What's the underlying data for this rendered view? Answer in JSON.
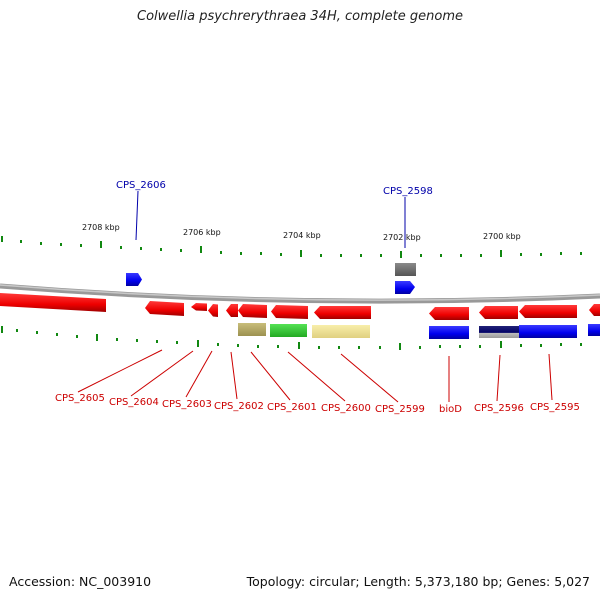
{
  "title": "Colwellia psychrerythraea 34H, complete genome",
  "footer": {
    "accession": "Accession: NC_003910",
    "summary": "Topology: circular; Length: 5,373,180 bp; Genes: 5,027"
  },
  "colors": {
    "forward_gene": "#0000ee",
    "reverse_gene": "#ee0000",
    "label_forward": "#0000aa",
    "label_reverse": "#cc0000",
    "tick": "#118811",
    "backbone": "#888888"
  },
  "coordinates": [
    "2708 kbp",
    "2706 kbp",
    "2704 kbp",
    "2702 kbp",
    "2700 kbp"
  ],
  "labels": {
    "top": [
      "CPS_2606",
      "CPS_2598"
    ],
    "bottom": [
      "CPS_2605",
      "CPS_2604",
      "CPS_2603",
      "CPS_2602",
      "CPS_2601",
      "CPS_2600",
      "CPS_2599",
      "bioD",
      "CPS_2596",
      "CPS_2595"
    ]
  }
}
